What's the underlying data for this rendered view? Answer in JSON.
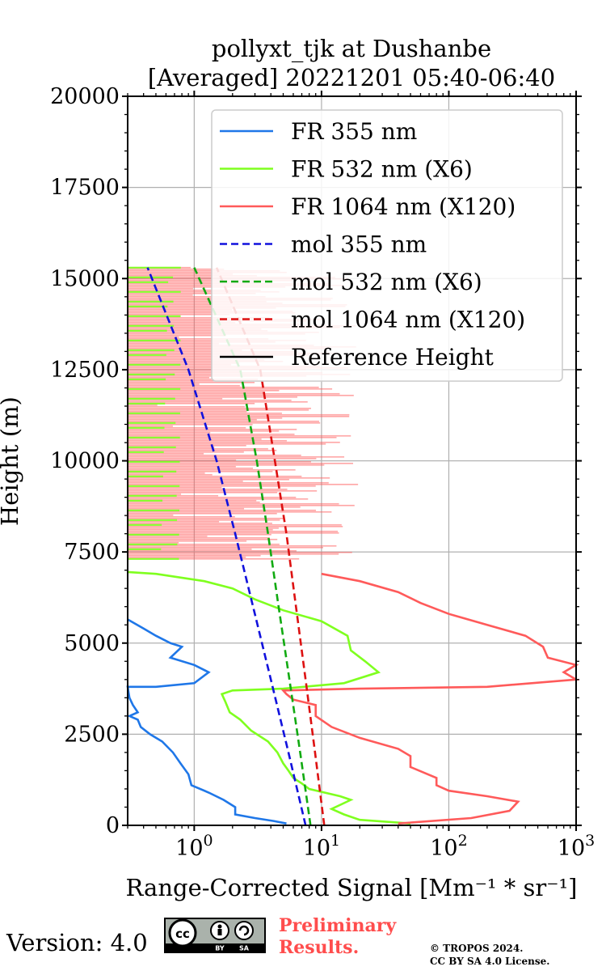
{
  "chart_data": {
    "type": "line",
    "title_line1": "pollyxt_tjk at Dushanbe",
    "title_line2": "[Averaged] 20221201 05:40-06:40",
    "xlabel": "Range-Corrected Signal [Mm⁻¹ * sr⁻¹]",
    "ylabel": "Height (m)",
    "xscale": "log",
    "xlim": [
      0.3,
      1000
    ],
    "ylim": [
      0,
      20000
    ],
    "x_ticks": [
      {
        "value": 1,
        "base": "10",
        "exp": "0"
      },
      {
        "value": 10,
        "base": "10",
        "exp": "1"
      },
      {
        "value": 100,
        "base": "10",
        "exp": "2"
      },
      {
        "value": 1000,
        "base": "10",
        "exp": "3"
      }
    ],
    "y_ticks": [
      0,
      2500,
      5000,
      7500,
      10000,
      12500,
      15000,
      17500,
      20000
    ],
    "grid": true,
    "legend_position": "top-right",
    "series": [
      {
        "name": "FR 355 nm",
        "color": "#1f77e8",
        "dash": "solid",
        "points": [
          [
            5.3,
            50
          ],
          [
            4.2,
            120
          ],
          [
            3.0,
            200
          ],
          [
            2.1,
            300
          ],
          [
            2.1,
            500
          ],
          [
            1.7,
            700
          ],
          [
            1.3,
            900
          ],
          [
            0.95,
            1100
          ],
          [
            0.9,
            1400
          ],
          [
            0.78,
            1700
          ],
          [
            0.68,
            2000
          ],
          [
            0.56,
            2300
          ],
          [
            0.45,
            2500
          ],
          [
            0.38,
            2700
          ],
          [
            0.36,
            2900
          ],
          [
            0.31,
            3000
          ],
          [
            0.36,
            3100
          ],
          [
            0.33,
            3300
          ],
          [
            0.31,
            3500
          ],
          [
            0.3,
            3800
          ],
          [
            0.5,
            3800
          ],
          [
            1.0,
            3900
          ],
          [
            1.3,
            4200
          ],
          [
            1.0,
            4400
          ],
          [
            0.65,
            4600
          ],
          [
            0.8,
            4900
          ],
          [
            0.65,
            5000
          ],
          [
            0.5,
            5200
          ],
          [
            0.4,
            5400
          ],
          [
            0.3,
            5650
          ]
        ]
      },
      {
        "name": "FR 532 nm (X6)",
        "color": "#7fff1f",
        "dash": "solid",
        "points": [
          [
            50,
            50
          ],
          [
            20,
            150
          ],
          [
            15,
            300
          ],
          [
            12,
            450
          ],
          [
            17,
            700
          ],
          [
            14,
            800
          ],
          [
            8,
            1000
          ],
          [
            7,
            1150
          ],
          [
            6,
            1300
          ],
          [
            5.5,
            1500
          ],
          [
            5,
            1700
          ],
          [
            4.5,
            2000
          ],
          [
            3.8,
            2300
          ],
          [
            2.8,
            2600
          ],
          [
            2.3,
            2900
          ],
          [
            1.9,
            3100
          ],
          [
            1.75,
            3400
          ],
          [
            1.65,
            3600
          ],
          [
            2,
            3700
          ],
          [
            5,
            3750
          ],
          [
            15,
            3900
          ],
          [
            28,
            4200
          ],
          [
            22,
            4500
          ],
          [
            17,
            4800
          ],
          [
            16,
            5200
          ],
          [
            10,
            5600
          ],
          [
            5,
            5900
          ],
          [
            3,
            6200
          ],
          [
            2,
            6500
          ],
          [
            1.2,
            6700
          ],
          [
            0.5,
            6900
          ],
          [
            0.3,
            6950
          ]
        ]
      },
      {
        "name": "FR 1064 nm (X120)",
        "color": "#ff5a5a",
        "dash": "solid",
        "points": [
          [
            40,
            50
          ],
          [
            150,
            200
          ],
          [
            300,
            400
          ],
          [
            350,
            650
          ],
          [
            200,
            800
          ],
          [
            100,
            950
          ],
          [
            80,
            1100
          ],
          [
            80,
            1300
          ],
          [
            50,
            1600
          ],
          [
            50,
            1900
          ],
          [
            40,
            2100
          ],
          [
            20,
            2400
          ],
          [
            12,
            2700
          ],
          [
            9,
            3000
          ],
          [
            9,
            3300
          ],
          [
            6,
            3450
          ],
          [
            5.3,
            3600
          ],
          [
            5,
            3700
          ],
          [
            20,
            3750
          ],
          [
            200,
            3800
          ],
          [
            1000,
            4000
          ],
          [
            800,
            4200
          ],
          [
            1000,
            4400
          ],
          [
            600,
            4600
          ],
          [
            550,
            4900
          ],
          [
            400,
            5200
          ],
          [
            200,
            5500
          ],
          [
            100,
            5800
          ],
          [
            60,
            6100
          ],
          [
            40,
            6400
          ],
          [
            20,
            6700
          ],
          [
            10,
            6900
          ]
        ]
      },
      {
        "name": "mol 355 nm",
        "color": "#1111dd",
        "dash": "dashed",
        "points": [
          [
            7.5,
            0
          ],
          [
            5.5,
            2000
          ],
          [
            4.0,
            4000
          ],
          [
            2.9,
            6000
          ],
          [
            2.1,
            8000
          ],
          [
            1.5,
            10000
          ],
          [
            0.9,
            12500
          ],
          [
            0.43,
            15300
          ]
        ]
      },
      {
        "name": "mol 532 nm (X6)",
        "color": "#11aa11",
        "dash": "dashed",
        "points": [
          [
            8.2,
            0
          ],
          [
            6.8,
            2000
          ],
          [
            5.6,
            4000
          ],
          [
            4.6,
            6000
          ],
          [
            3.8,
            8000
          ],
          [
            3.1,
            10000
          ],
          [
            2.3,
            12500
          ],
          [
            1.0,
            15300
          ]
        ]
      },
      {
        "name": "mol 1064 nm (X120)",
        "color": "#dd1111",
        "dash": "dashed",
        "points": [
          [
            10.5,
            0
          ],
          [
            8.9,
            2000
          ],
          [
            7.5,
            4000
          ],
          [
            6.3,
            6000
          ],
          [
            5.3,
            8000
          ],
          [
            4.3,
            10000
          ],
          [
            3.3,
            12500
          ],
          [
            1.5,
            15300
          ]
        ]
      },
      {
        "name": "Reference Height",
        "color": "#000000",
        "dash": "solid",
        "points": []
      }
    ],
    "noise_region": {
      "ylim": [
        7300,
        15300
      ],
      "red_band_x": [
        0.3,
        18
      ],
      "green_band_x": [
        0.3,
        1.0
      ]
    }
  },
  "footer": {
    "version": "Version: 4.0",
    "license_badge": "CC BY SA",
    "preliminary": "Preliminary Results.",
    "copyright_line1": "© TROPOS 2024.",
    "copyright_line2": "CC BY SA 4.0 License."
  }
}
